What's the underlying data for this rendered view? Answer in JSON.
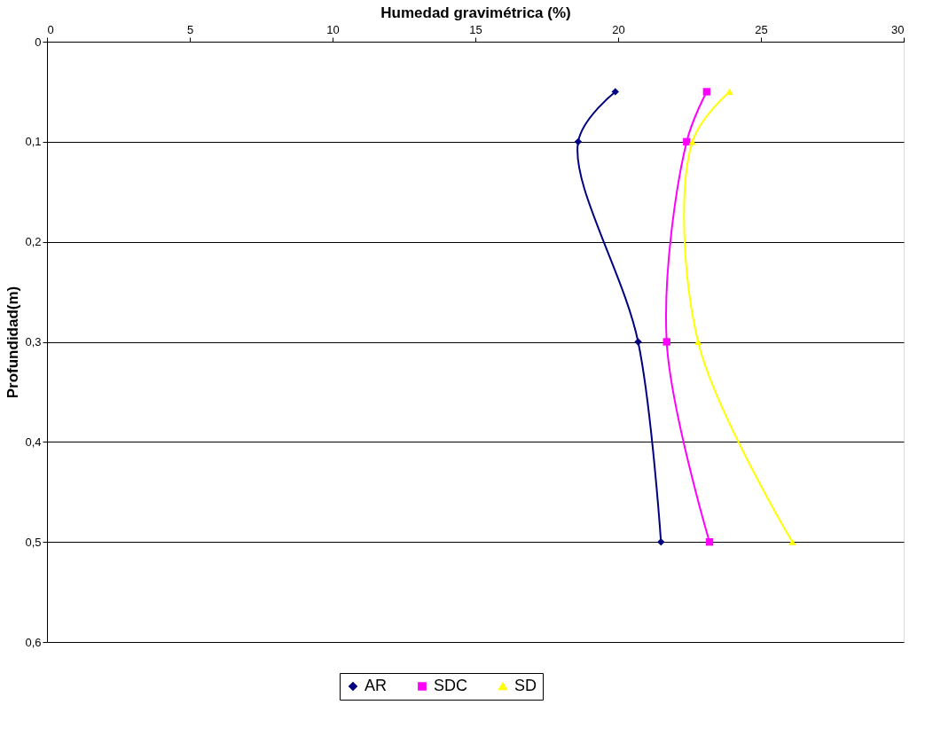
{
  "chart_data": {
    "type": "line",
    "xlabel": "Humedad gravimétrica  (%)",
    "ylabel": "Profundidad(m)",
    "xlim": [
      0,
      30
    ],
    "xticks": [
      0,
      5,
      10,
      15,
      20,
      25,
      30
    ],
    "ylim": [
      0.6,
      0
    ],
    "yticks": [
      {
        "value": 0,
        "label": "0"
      },
      {
        "value": 0.1,
        "label": "0,1"
      },
      {
        "value": 0.2,
        "label": "0,2"
      },
      {
        "value": 0.3,
        "label": "0,3"
      },
      {
        "value": 0.4,
        "label": "0,4"
      },
      {
        "value": 0.5,
        "label": "0,5"
      },
      {
        "value": 0.6,
        "label": "0,6"
      }
    ],
    "grid": "y",
    "legend": "bottom",
    "line_style": "solid",
    "series": [
      {
        "name": "AR",
        "color": "#000080",
        "marker": "diamond",
        "x": [
          19.9,
          18.6,
          20.7,
          21.5
        ],
        "values": [
          0.05,
          0.1,
          0.3,
          0.5
        ]
      },
      {
        "name": "SDC",
        "color": "#ff00ff",
        "marker": "square",
        "x": [
          23.1,
          22.4,
          21.7,
          23.2
        ],
        "values": [
          0.05,
          0.1,
          0.3,
          0.5
        ]
      },
      {
        "name": "SD",
        "color": "#ffff00",
        "marker": "triangle",
        "x": [
          23.9,
          22.6,
          22.8,
          26.1
        ],
        "values": [
          0.05,
          0.1,
          0.3,
          0.5
        ]
      }
    ]
  }
}
